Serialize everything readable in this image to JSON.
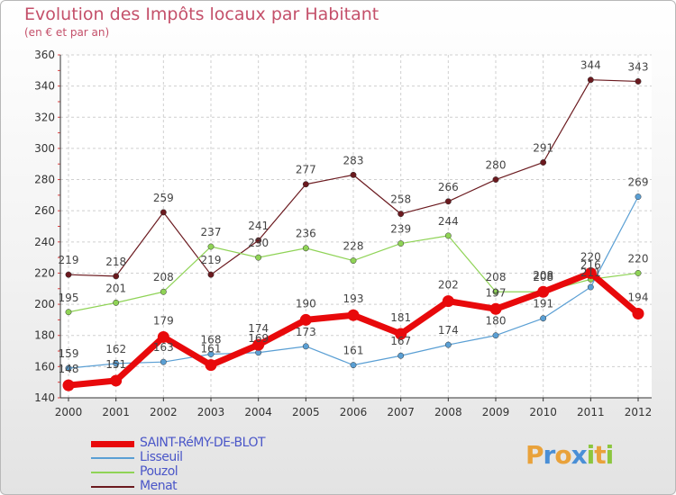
{
  "header": {
    "title": "Evolution des Impôts locaux par Habitant",
    "subtitle": "(en € et par an)"
  },
  "logo": {
    "text": "Proxiti",
    "letters": [
      {
        "ch": "P",
        "color": "#e9a23b"
      },
      {
        "ch": "r",
        "color": "#4a8fd6"
      },
      {
        "ch": "o",
        "color": "#e9a23b"
      },
      {
        "ch": "x",
        "color": "#4a8fd6"
      },
      {
        "ch": "i",
        "color": "#8cc63f"
      },
      {
        "ch": "t",
        "color": "#e9a23b"
      },
      {
        "ch": "i",
        "color": "#8cc63f"
      }
    ]
  },
  "chart_data": {
    "type": "line",
    "title": "Evolution des Impôts locaux par Habitant",
    "subtitle": "(en € et par an)",
    "xlabel": "",
    "ylabel": "",
    "x": [
      "2000",
      "2001",
      "2002",
      "2003",
      "2004",
      "2005",
      "2006",
      "2007",
      "2008",
      "2009",
      "2010",
      "2011",
      "2012"
    ],
    "ylim": [
      140,
      360
    ],
    "yticks": [
      140,
      160,
      180,
      200,
      220,
      240,
      260,
      280,
      300,
      320,
      340,
      360
    ],
    "grid": true,
    "legend_position": "bottom-left",
    "series": [
      {
        "name": "SAINT-RéMY-DE-BLOT",
        "color": "#e8090b",
        "values": [
          148,
          151,
          179,
          161,
          174,
          190,
          193,
          181,
          202,
          197,
          208,
          220,
          194
        ]
      },
      {
        "name": "Lisseuil",
        "color": "#5a9fd4",
        "values": [
          159,
          162,
          163,
          168,
          169,
          173,
          161,
          167,
          174,
          180,
          191,
          211,
          269
        ]
      },
      {
        "name": "Pouzol",
        "color": "#8fd356",
        "values": [
          195,
          201,
          208,
          237,
          230,
          236,
          228,
          239,
          244,
          208,
          208,
          216,
          220
        ]
      },
      {
        "name": "Menat",
        "color": "#6b1a1f",
        "values": [
          219,
          218,
          259,
          219,
          241,
          277,
          283,
          258,
          266,
          280,
          291,
          344,
          343
        ]
      }
    ]
  }
}
